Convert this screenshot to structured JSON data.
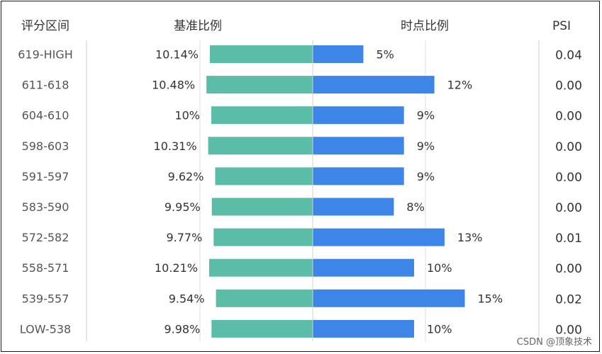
{
  "chart_data": {
    "type": "bar",
    "headers": {
      "category": "评分区间",
      "base": "基准比例",
      "point": "时点比例",
      "psi": "PSI"
    },
    "categories": [
      "619-HIGH",
      "611-618",
      "604-610",
      "598-603",
      "591-597",
      "583-590",
      "572-582",
      "558-571",
      "539-557",
      "LOW-538"
    ],
    "series": [
      {
        "values": [
          10.14,
          10.48,
          10,
          10.31,
          9.62,
          9.95,
          9.77,
          10.21,
          9.54,
          9.98
        ],
        "labels": [
          "10.14%",
          "10.48%",
          "10%",
          "10.31%",
          "9.62%",
          "9.95%",
          "9.77%",
          "10.21%",
          "9.54%",
          "9.98%"
        ],
        "color": "#5bbda8"
      },
      {
        "values": [
          5,
          12,
          9,
          9,
          9,
          8,
          13,
          10,
          15,
          10
        ],
        "labels": [
          "5%",
          "12%",
          "9%",
          "9%",
          "9%",
          "8%",
          "13%",
          "10%",
          "15%",
          "10%"
        ],
        "color": "#3d85e6"
      }
    ],
    "psi": [
      "0.04",
      "0.00",
      "0.00",
      "0.00",
      "0.00",
      "0.00",
      "0.01",
      "0.00",
      "0.02",
      "0.00"
    ]
  },
  "watermark": "CSDN @顶象技术"
}
